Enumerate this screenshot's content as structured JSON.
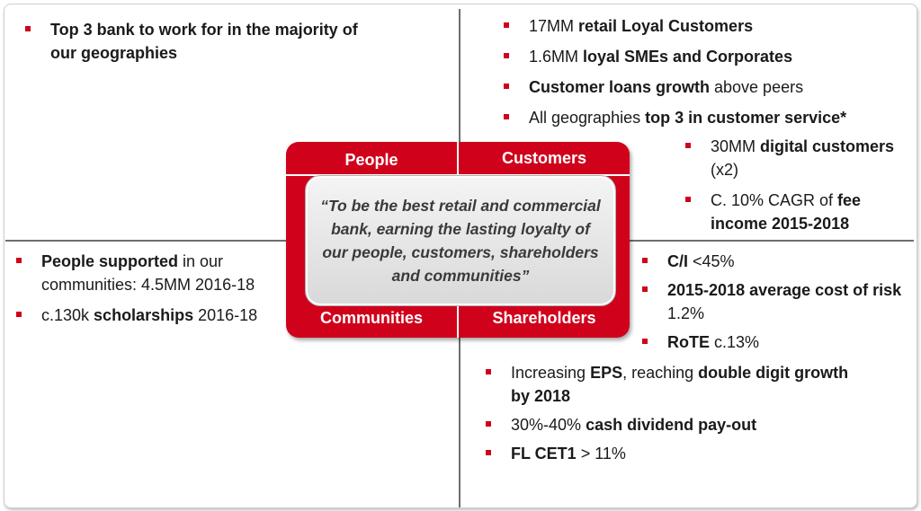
{
  "colors": {
    "accent": "#d0021b",
    "divider": "#6e6e6e",
    "quote_bg": "#e6e6e6"
  },
  "hub": {
    "people": "People",
    "customers": "Customers",
    "communities": "Communities",
    "shareholders": "Shareholders",
    "quote": "“To be the best retail and commercial bank, earning the lasting loyalty of our people, customers, shareholders and communities”"
  },
  "people_section": {
    "items": [
      {
        "bold": "Top 3 bank to work for in the majority of our geographies"
      }
    ]
  },
  "customers_section": {
    "items": [
      {
        "pre": "17MM ",
        "bold": "retail Loyal Customers",
        "post": ""
      },
      {
        "pre": "1.6MM ",
        "bold": "loyal SMEs and Corporates",
        "post": ""
      },
      {
        "pre": "",
        "bold": "Customer loans growth",
        "post": " above peers"
      },
      {
        "pre": "All geographies ",
        "bold": "top 3 in customer service*",
        "post": ""
      },
      {
        "pre": "30MM ",
        "bold": "digital customers",
        "post": " (x2)"
      },
      {
        "pre": "C. 10% CAGR of ",
        "bold": "fee income 2015-2018",
        "post": ""
      }
    ]
  },
  "communities_section": {
    "items": [
      {
        "pre": "",
        "bold": "People supported",
        "post": " in our communities: 4.5MM 2016-18"
      },
      {
        "pre": "c.130k ",
        "bold": "scholarships",
        "post": " 2016-18"
      }
    ]
  },
  "shareholders_section": {
    "items": [
      {
        "pre": "",
        "bold": "C/I",
        "post": " <45%"
      },
      {
        "pre": "",
        "bold": "2015-2018 average cost of risk",
        "post": " 1.2%"
      },
      {
        "pre": "",
        "bold": "RoTE",
        "post": " c.13%"
      },
      {
        "pre": "Increasing ",
        "bold": "EPS",
        "mid": ", reaching ",
        "bold2": "double digit growth by 2018"
      },
      {
        "pre": "30%-40% ",
        "bold": "cash dividend pay-out",
        "post": ""
      },
      {
        "pre": "",
        "bold": "FL CET1",
        "post": " > 11%"
      }
    ]
  }
}
